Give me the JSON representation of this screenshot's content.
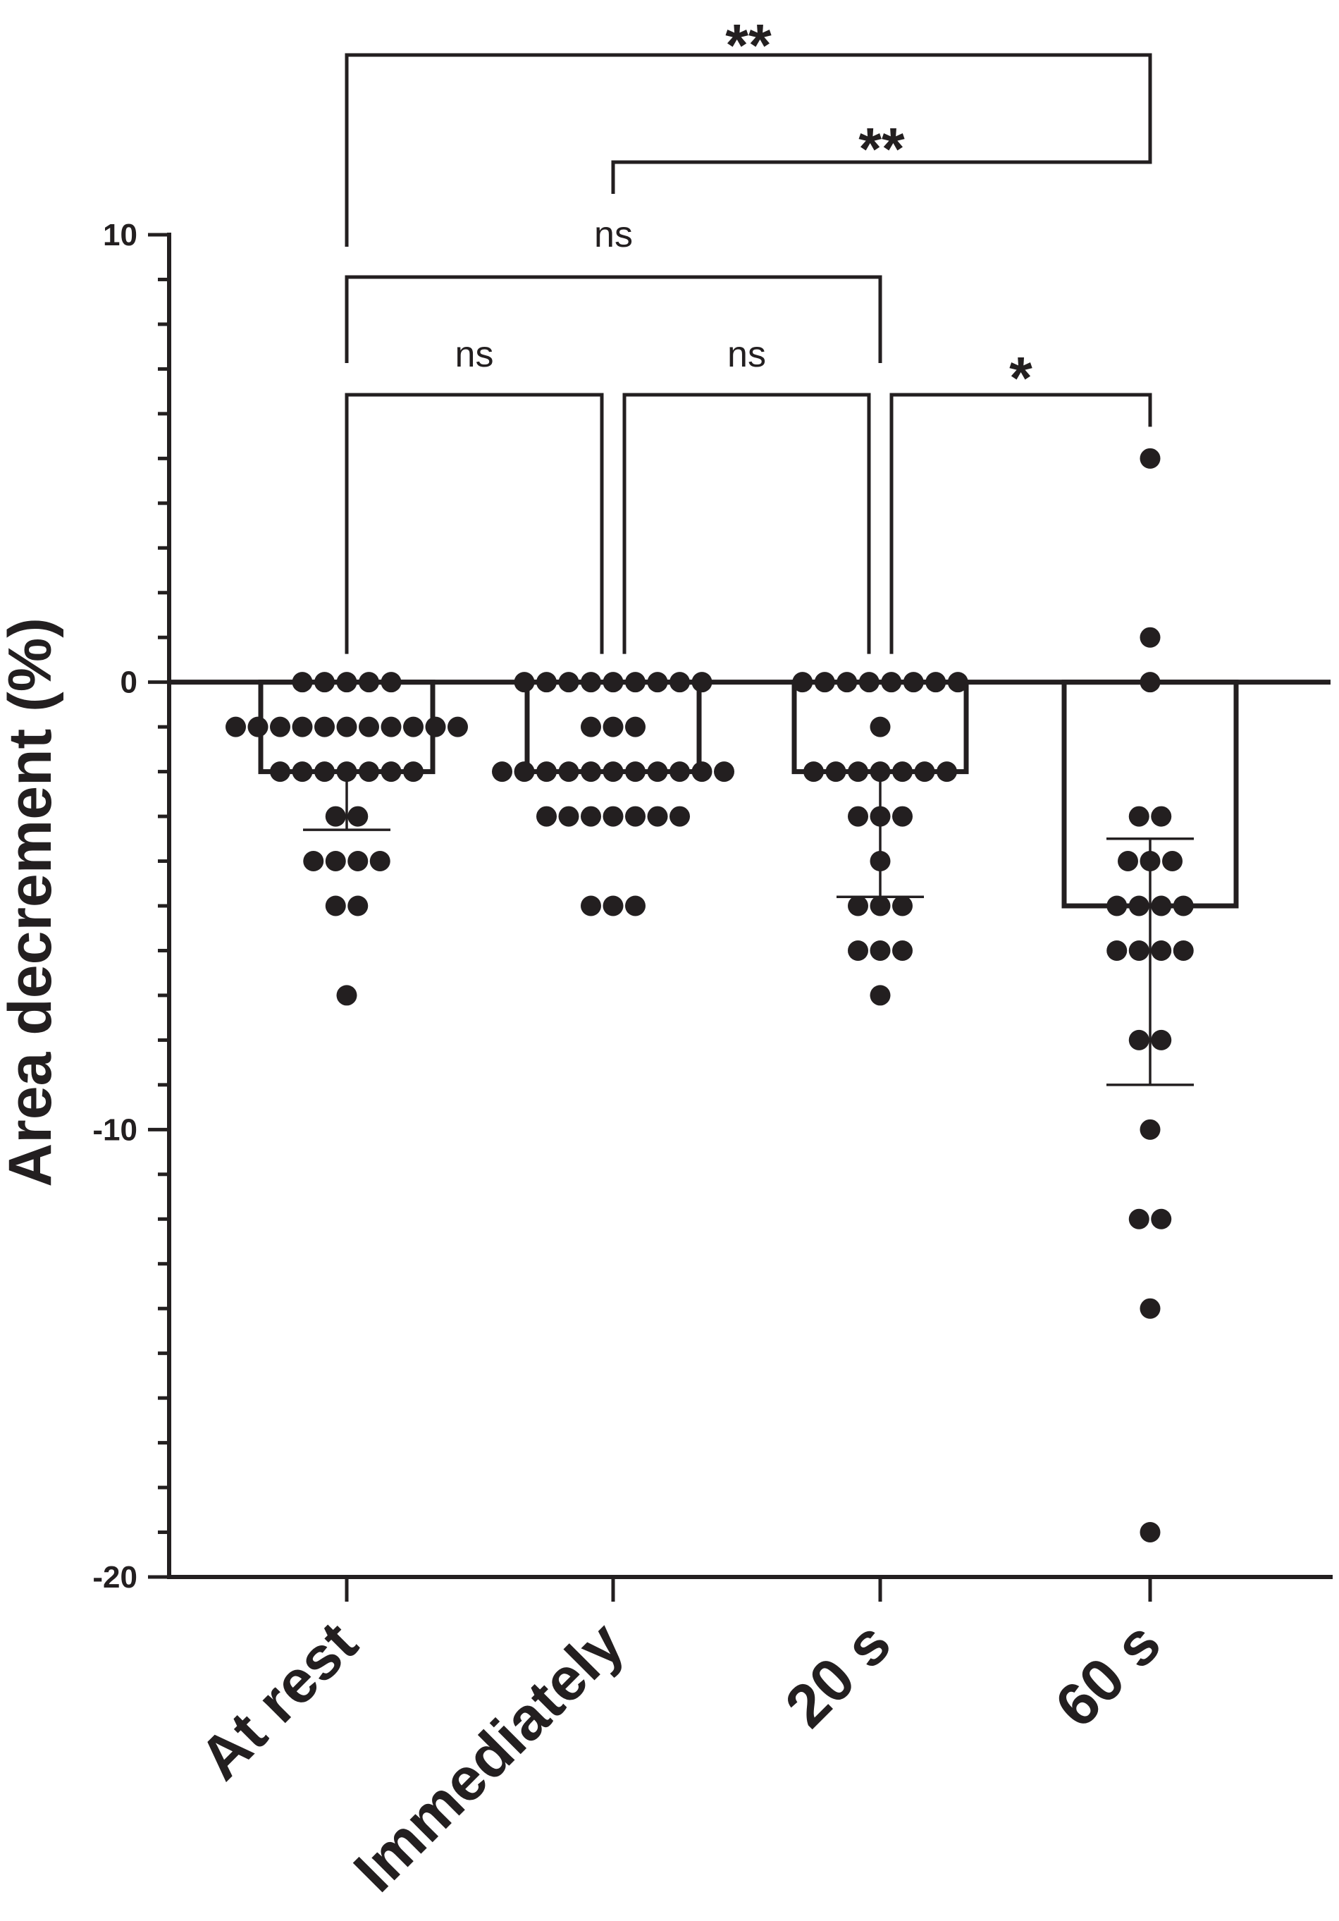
{
  "chart_data": {
    "type": "bar",
    "title": "",
    "ylabel": "Area decrement (%)",
    "xlabel": "",
    "ylim": [
      -20,
      10
    ],
    "y_ticks": [
      -20,
      -10,
      0,
      10
    ],
    "y_minor_step": 1,
    "categories": [
      "At rest",
      "Immediately",
      "20 s",
      "60 s"
    ],
    "bars": [
      {
        "mean": -2,
        "err_low": -3.3,
        "err_high": -2
      },
      {
        "mean": -2,
        "err_low": -2,
        "err_high": -2
      },
      {
        "mean": -2,
        "err_low": -4.8,
        "err_high": -2
      },
      {
        "mean": -5,
        "err_low": -9,
        "err_high": -3.5
      }
    ],
    "points": [
      [
        0,
        0,
        0,
        0,
        0,
        -1,
        -1,
        -1,
        -1,
        -1,
        -1,
        -1,
        -1,
        -1,
        -1,
        -1,
        -2,
        -2,
        -2,
        -2,
        -2,
        -2,
        -2,
        -3,
        -3,
        -4,
        -4,
        -4,
        -4,
        -5,
        -5,
        -7
      ],
      [
        0,
        0,
        0,
        0,
        0,
        0,
        0,
        0,
        0,
        -1,
        -1,
        -1,
        -2,
        -2,
        -2,
        -2,
        -2,
        -2,
        -2,
        -2,
        -2,
        -2,
        -2,
        -3,
        -3,
        -3,
        -3,
        -3,
        -3,
        -3,
        -5,
        -5,
        -5
      ],
      [
        0,
        0,
        0,
        0,
        0,
        0,
        0,
        0,
        -1,
        -2,
        -2,
        -2,
        -2,
        -2,
        -2,
        -2,
        -3,
        -3,
        -3,
        -4,
        -5,
        -5,
        -5,
        -6,
        -6,
        -6,
        -7
      ],
      [
        5,
        1,
        0,
        -3,
        -3,
        -4,
        -4,
        -4,
        -5,
        -5,
        -5,
        -5,
        -6,
        -6,
        -6,
        -6,
        -8,
        -8,
        -10,
        -12,
        -12,
        -14,
        -19
      ]
    ],
    "comparisons": [
      {
        "from": 0,
        "to": 1,
        "label": "ns"
      },
      {
        "from": 1,
        "to": 2,
        "label": "ns"
      },
      {
        "from": 2,
        "to": 3,
        "label": "*"
      },
      {
        "from": 0,
        "to": 2,
        "label": "ns"
      },
      {
        "from": 1,
        "to": 3,
        "label": "**"
      },
      {
        "from": 0,
        "to": 3,
        "label": "**"
      }
    ]
  }
}
